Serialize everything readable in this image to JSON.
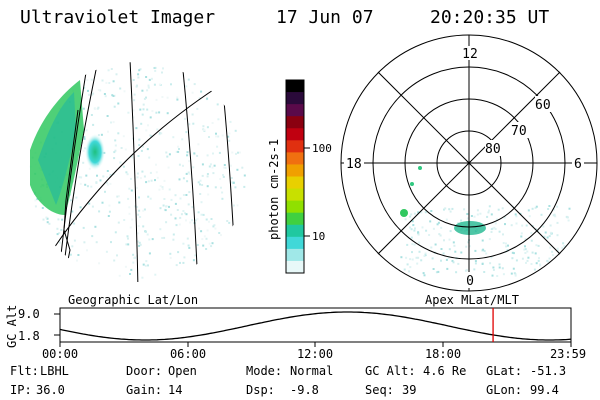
{
  "header": {
    "title": "Ultraviolet Imager",
    "date": "17 Jun 07",
    "time": "20:20:35 UT"
  },
  "colorbar": {
    "label": "photon cm-2s-1",
    "ticks": [
      "100",
      "10"
    ],
    "colors": [
      "#000000",
      "#2a0a3a",
      "#5a0a4a",
      "#8a0010",
      "#c00010",
      "#e03010",
      "#f07010",
      "#f0a000",
      "#e8d000",
      "#c8e000",
      "#90e000",
      "#40d040",
      "#20c8a0",
      "#40d8d8",
      "#a0e8e8",
      "#e8f8f8"
    ]
  },
  "geo_panel": {
    "label": "Geographic Lat/Lon"
  },
  "apex_panel": {
    "label": "Apex MLat/MLT",
    "lat_labels": [
      "60",
      "70",
      "80"
    ],
    "mlt_labels": [
      "12",
      "18",
      "6",
      "0"
    ]
  },
  "altitude_plot": {
    "ylabel": "GC Alt",
    "yticks": [
      "9.0",
      "1.8"
    ],
    "xticks": [
      "00:00",
      "06:00",
      "12:00",
      "18:00",
      "23:59"
    ],
    "marker_time_hours": 20.34,
    "marker_color": "#e00000"
  },
  "info": {
    "row1": [
      {
        "key": "Flt:",
        "value": "LBHL"
      },
      {
        "key": "Door:",
        "value": "Open"
      },
      {
        "key": "Mode:",
        "value": "Normal"
      },
      {
        "key": "GC Alt:",
        "value": "4.6 Re"
      },
      {
        "key": "GLat:",
        "value": "-51.3"
      }
    ],
    "row2": [
      {
        "key": "IP:",
        "value": "36.0"
      },
      {
        "key": "Gain:",
        "value": "14"
      },
      {
        "key": "Dsp:",
        "value": "-9.8"
      },
      {
        "key": "Seq:",
        "value": "39"
      },
      {
        "key": "GLon:",
        "value": "99.4"
      }
    ]
  }
}
